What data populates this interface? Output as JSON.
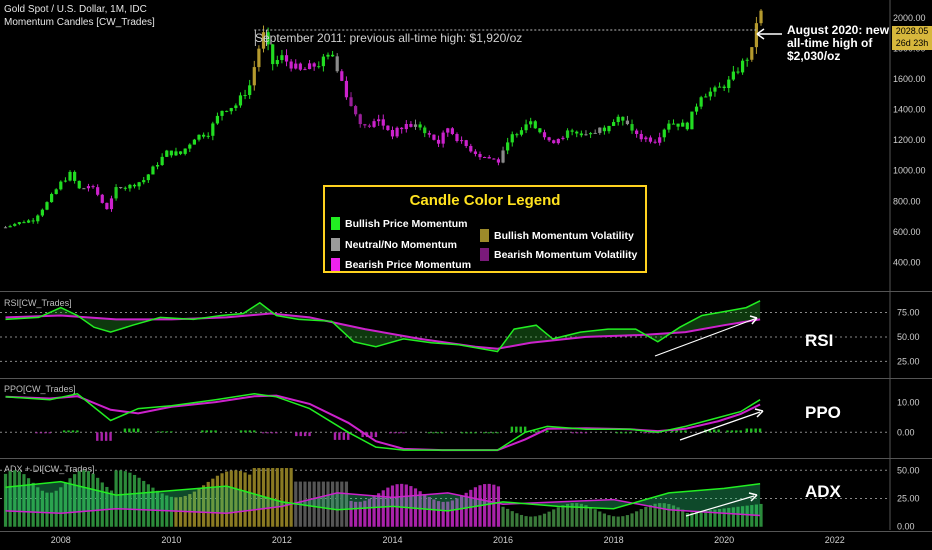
{
  "header": {
    "title": "Gold Spot / U.S. Dollar, 1M, IDC",
    "indicator": "Momentum Candles [CW_Trades]"
  },
  "annotations": {
    "sept2011": "September 2011: previous all-time high: $1,920/oz",
    "aug2020_line1": "August 2020: new",
    "aug2020_line2": "all-time high of",
    "aug2020_line3": "$2,030/oz"
  },
  "price_tag": {
    "value": "2028.05",
    "countdown": "26d 23h"
  },
  "legend": {
    "title": "Candle Color Legend",
    "items": [
      {
        "label": "Bullish Price Momentum",
        "color": "#22ee22"
      },
      {
        "label": "Neutral/No Momentum",
        "color": "#9a9a9a"
      },
      {
        "label": "Bearish Price Momentum",
        "color": "#ee22ee"
      },
      {
        "label": "Bullish Momentum Volatility",
        "color": "#9c8a2a"
      },
      {
        "label": "Bearish Momentum Volatility",
        "color": "#7a1a7a"
      }
    ]
  },
  "panels": {
    "rsi": {
      "title": "RSI[CW_Trades]",
      "label": "RSI",
      "ticks": [
        "75.00",
        "50.00",
        "25.00"
      ]
    },
    "ppo": {
      "title": "PPO[CW_Trades]",
      "label": "PPO",
      "ticks": [
        "10.00",
        "0.00"
      ]
    },
    "adx": {
      "title": "ADX + DI[CW_Trades]",
      "label": "ADX",
      "ticks": [
        "50.00",
        "25.00",
        "0.00"
      ]
    }
  },
  "chart_data": {
    "type": "candlestick",
    "price_axis_ticks": [
      "2000.00",
      "1800.00",
      "1600.00",
      "1400.00",
      "1200.00",
      "1000.00",
      "800.00",
      "600.00",
      "400.00"
    ],
    "x_ticks": [
      "2008",
      "2010",
      "2012",
      "2014",
      "2016",
      "2018",
      "2020",
      "2022"
    ],
    "ylim": [
      220,
      2090
    ],
    "xlim": [
      2006.9,
      2023.0
    ],
    "monthly_close": [
      [
        2007.0,
        630
      ],
      [
        2007.25,
        660
      ],
      [
        2007.5,
        680
      ],
      [
        2007.75,
        790
      ],
      [
        2008.0,
        920
      ],
      [
        2008.17,
        980
      ],
      [
        2008.33,
        880
      ],
      [
        2008.58,
        900
      ],
      [
        2008.83,
        740
      ],
      [
        2009.0,
        880
      ],
      [
        2009.25,
        900
      ],
      [
        2009.5,
        940
      ],
      [
        2009.75,
        1050
      ],
      [
        2009.92,
        1120
      ],
      [
        2010.17,
        1110
      ],
      [
        2010.42,
        1220
      ],
      [
        2010.67,
        1250
      ],
      [
        2010.92,
        1400
      ],
      [
        2011.17,
        1430
      ],
      [
        2011.42,
        1560
      ],
      [
        2011.58,
        1800
      ],
      [
        2011.67,
        1890
      ],
      [
        2011.83,
        1700
      ],
      [
        2012.0,
        1740
      ],
      [
        2012.33,
        1650
      ],
      [
        2012.67,
        1700
      ],
      [
        2012.83,
        1780
      ],
      [
        2013.0,
        1670
      ],
      [
        2013.25,
        1420
      ],
      [
        2013.5,
        1280
      ],
      [
        2013.75,
        1330
      ],
      [
        2014.0,
        1240
      ],
      [
        2014.25,
        1300
      ],
      [
        2014.5,
        1290
      ],
      [
        2014.83,
        1180
      ],
      [
        2015.0,
        1280
      ],
      [
        2015.25,
        1180
      ],
      [
        2015.58,
        1100
      ],
      [
        2015.92,
        1060
      ],
      [
        2016.17,
        1230
      ],
      [
        2016.5,
        1340
      ],
      [
        2016.83,
        1180
      ],
      [
        2017.17,
        1250
      ],
      [
        2017.5,
        1240
      ],
      [
        2017.83,
        1280
      ],
      [
        2018.08,
        1340
      ],
      [
        2018.5,
        1220
      ],
      [
        2018.75,
        1200
      ],
      [
        2019.0,
        1320
      ],
      [
        2019.33,
        1290
      ],
      [
        2019.58,
        1500
      ],
      [
        2019.83,
        1520
      ],
      [
        2020.08,
        1580
      ],
      [
        2020.33,
        1700
      ],
      [
        2020.5,
        1780
      ],
      [
        2020.58,
        1975
      ],
      [
        2020.65,
        2028
      ]
    ],
    "september_2011_high": 1920,
    "august_2020_high": 2030
  }
}
